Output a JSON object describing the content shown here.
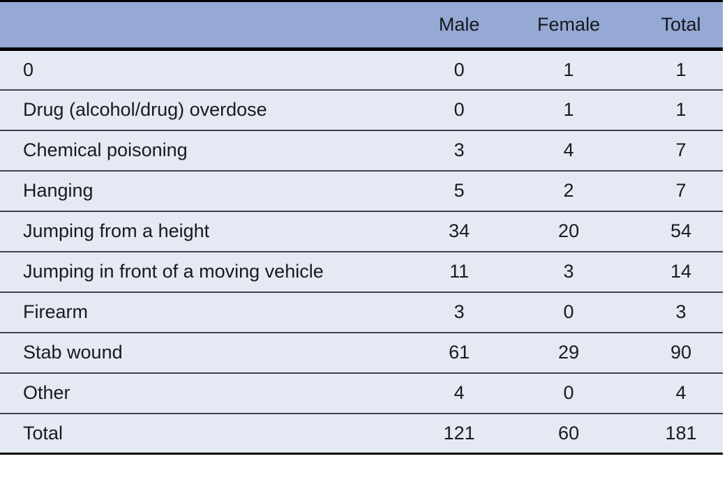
{
  "colors": {
    "header_bg": "#95a9d4",
    "row_bg": "#e4e9f4",
    "border_black": "#000000",
    "row_separator": "#3d434e",
    "text": "#1a1a1a",
    "header_text": "#16181d"
  },
  "chart_data": {
    "type": "table",
    "columns": [
      "",
      "Male",
      "Female",
      "Total"
    ],
    "rows": [
      [
        "0",
        "0",
        "1",
        "1"
      ],
      [
        "Drug (alcohol/drug) overdose",
        "0",
        "1",
        "1"
      ],
      [
        "Chemical poisoning",
        "3",
        "4",
        "7"
      ],
      [
        "Hanging",
        "5",
        "2",
        "7"
      ],
      [
        "Jumping from a height",
        "34",
        "20",
        "54"
      ],
      [
        "Jumping in front of a moving vehicle",
        "11",
        "3",
        "14"
      ],
      [
        "Firearm",
        "3",
        "0",
        "3"
      ],
      [
        "Stab wound",
        "61",
        "29",
        "90"
      ],
      [
        "Other",
        "4",
        "0",
        "4"
      ],
      [
        "Total",
        "121",
        "60",
        "181"
      ]
    ],
    "layout": {
      "header_row": true,
      "numeric_alignment": "center",
      "label_alignment": "left"
    }
  }
}
